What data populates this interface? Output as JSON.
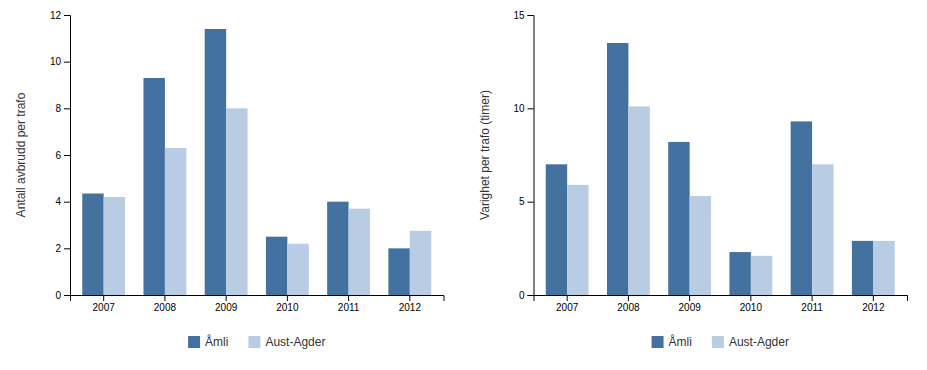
{
  "chart_data": [
    {
      "type": "bar",
      "categories": [
        "2007",
        "2008",
        "2009",
        "2010",
        "2011",
        "2012"
      ],
      "series": [
        {
          "name": "Åmli",
          "color": "#4472a0",
          "values": [
            4.35,
            9.3,
            11.4,
            2.5,
            4.0,
            2.0
          ]
        },
        {
          "name": "Aust-Agder",
          "color": "#b8cce4",
          "values": [
            4.2,
            6.3,
            8.0,
            2.2,
            3.7,
            2.75
          ]
        }
      ],
      "ylabel": "Antall avbrudd per trafo",
      "ylim": [
        0,
        12
      ],
      "yticks": [
        0,
        2,
        4,
        6,
        8,
        10,
        12
      ],
      "grid": false,
      "legend": "bottom"
    },
    {
      "type": "bar",
      "categories": [
        "2007",
        "2008",
        "2009",
        "2010",
        "2011",
        "2012"
      ],
      "series": [
        {
          "name": "Åmli",
          "color": "#4472a0",
          "values": [
            7.0,
            13.5,
            8.2,
            2.3,
            9.3,
            2.9
          ]
        },
        {
          "name": "Aust-Agder",
          "color": "#b8cce4",
          "values": [
            5.9,
            10.1,
            5.3,
            2.1,
            7.0,
            2.9
          ]
        }
      ],
      "ylabel": "Varighet per trafo (timer)",
      "ylim": [
        0,
        15
      ],
      "yticks": [
        0,
        5,
        10,
        15
      ],
      "grid": false,
      "legend": "bottom"
    }
  ]
}
